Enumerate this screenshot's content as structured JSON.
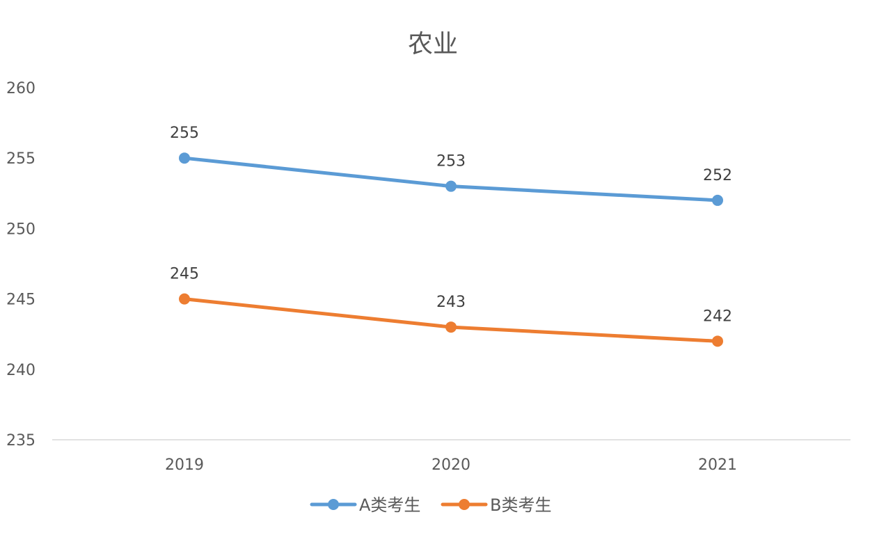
{
  "chart_data": {
    "type": "line",
    "title": "农业",
    "categories": [
      "2019",
      "2020",
      "2021"
    ],
    "series": [
      {
        "name": "A类考生",
        "values": [
          255,
          253,
          252
        ],
        "color": "#5b9bd5"
      },
      {
        "name": "B类考生",
        "values": [
          245,
          243,
          242
        ],
        "color": "#ed7d31"
      }
    ],
    "ylim": [
      235,
      260
    ],
    "yticks": [
      235,
      240,
      245,
      250,
      255,
      260
    ],
    "xlabel": "",
    "ylabel": "",
    "grid": false,
    "legend": "bottom-center",
    "data_labels": true
  }
}
